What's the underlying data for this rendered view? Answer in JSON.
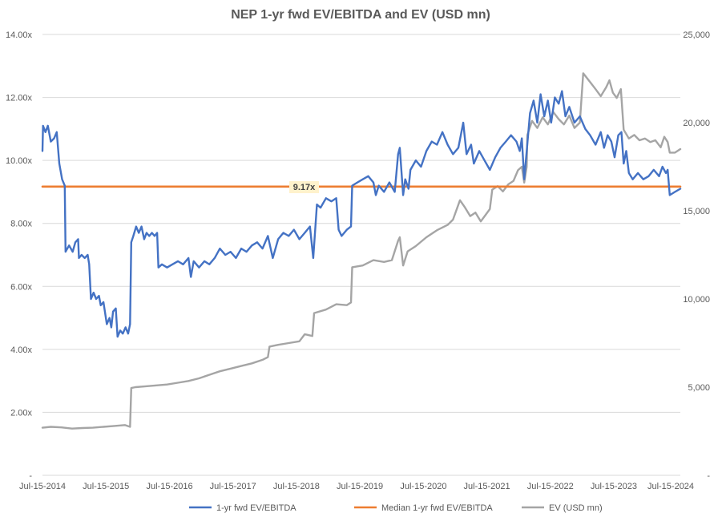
{
  "chart_data": {
    "type": "line",
    "title": "NEP 1-yr fwd EV/EBITDA and EV (USD mn)",
    "x_ticks": [
      "Jul-15-2014",
      "Jul-15-2015",
      "Jul-15-2016",
      "Jul-15-2017",
      "Jul-15-2018",
      "Jul-15-2019",
      "Jul-15-2020",
      "Jul-15-2021",
      "Jul-15-2022",
      "Jul-15-2023",
      "Jul-15-2024"
    ],
    "x_range": [
      "2014-07-15",
      "2024-08-01"
    ],
    "y_left": {
      "ticks": [
        "-",
        "2.00x",
        "4.00x",
        "6.00x",
        "8.00x",
        "10.00x",
        "12.00x",
        "14.00x"
      ],
      "ylim": [
        0,
        14
      ]
    },
    "y_right": {
      "ticks": [
        "-",
        "5,000",
        "10,000",
        "15,000",
        "20,000",
        "25,000"
      ],
      "ylim": [
        0,
        25000
      ]
    },
    "grid": true,
    "legend_position": "bottom",
    "median_label": "9.17x",
    "series": [
      {
        "name": "1-yr fwd EV/EBITDA",
        "axis": "left",
        "color": "#4472C4",
        "points": [
          [
            "2014-07-15",
            10.3
          ],
          [
            "2014-07-18",
            11.1
          ],
          [
            "2014-08-01",
            10.9
          ],
          [
            "2014-08-15",
            11.1
          ],
          [
            "2014-09-01",
            10.6
          ],
          [
            "2014-09-20",
            10.7
          ],
          [
            "2014-10-05",
            10.9
          ],
          [
            "2014-10-20",
            9.9
          ],
          [
            "2014-11-05",
            9.4
          ],
          [
            "2014-11-20",
            9.2
          ],
          [
            "2014-11-25",
            7.1
          ],
          [
            "2014-12-15",
            7.3
          ],
          [
            "2015-01-05",
            7.1
          ],
          [
            "2015-01-20",
            7.4
          ],
          [
            "2015-02-05",
            7.5
          ],
          [
            "2015-02-10",
            6.9
          ],
          [
            "2015-02-25",
            7.0
          ],
          [
            "2015-03-15",
            6.9
          ],
          [
            "2015-04-01",
            7.0
          ],
          [
            "2015-04-10",
            6.7
          ],
          [
            "2015-04-20",
            5.6
          ],
          [
            "2015-05-05",
            5.8
          ],
          [
            "2015-05-20",
            5.6
          ],
          [
            "2015-06-05",
            5.7
          ],
          [
            "2015-06-15",
            5.4
          ],
          [
            "2015-07-01",
            5.5
          ],
          [
            "2015-07-20",
            4.8
          ],
          [
            "2015-08-05",
            5.0
          ],
          [
            "2015-08-15",
            4.7
          ],
          [
            "2015-08-25",
            5.2
          ],
          [
            "2015-09-10",
            5.3
          ],
          [
            "2015-09-20",
            4.4
          ],
          [
            "2015-10-05",
            4.6
          ],
          [
            "2015-10-20",
            4.5
          ],
          [
            "2015-11-05",
            4.7
          ],
          [
            "2015-11-20",
            4.5
          ],
          [
            "2015-12-01",
            4.8
          ],
          [
            "2015-12-08",
            7.4
          ],
          [
            "2015-12-20",
            7.6
          ],
          [
            "2016-01-05",
            7.9
          ],
          [
            "2016-01-20",
            7.7
          ],
          [
            "2016-02-05",
            7.9
          ],
          [
            "2016-02-20",
            7.5
          ],
          [
            "2016-03-05",
            7.7
          ],
          [
            "2016-03-20",
            7.6
          ],
          [
            "2016-04-05",
            7.7
          ],
          [
            "2016-04-20",
            7.6
          ],
          [
            "2016-05-05",
            7.7
          ],
          [
            "2016-05-12",
            6.6
          ],
          [
            "2016-06-01",
            6.7
          ],
          [
            "2016-07-01",
            6.6
          ],
          [
            "2016-08-01",
            6.7
          ],
          [
            "2016-09-01",
            6.8
          ],
          [
            "2016-10-01",
            6.7
          ],
          [
            "2016-11-01",
            6.9
          ],
          [
            "2016-11-15",
            6.3
          ],
          [
            "2016-12-01",
            6.8
          ],
          [
            "2017-01-01",
            6.6
          ],
          [
            "2017-02-01",
            6.8
          ],
          [
            "2017-03-01",
            6.7
          ],
          [
            "2017-04-01",
            6.9
          ],
          [
            "2017-05-01",
            7.2
          ],
          [
            "2017-06-01",
            7.0
          ],
          [
            "2017-07-01",
            7.1
          ],
          [
            "2017-08-01",
            6.9
          ],
          [
            "2017-09-01",
            7.2
          ],
          [
            "2017-10-01",
            7.1
          ],
          [
            "2017-11-01",
            7.3
          ],
          [
            "2017-12-01",
            7.4
          ],
          [
            "2018-01-01",
            7.2
          ],
          [
            "2018-02-01",
            7.6
          ],
          [
            "2018-03-01",
            6.9
          ],
          [
            "2018-04-01",
            7.5
          ],
          [
            "2018-05-01",
            7.7
          ],
          [
            "2018-06-01",
            7.6
          ],
          [
            "2018-07-01",
            7.8
          ],
          [
            "2018-08-01",
            7.5
          ],
          [
            "2018-09-01",
            7.7
          ],
          [
            "2018-10-01",
            7.9
          ],
          [
            "2018-10-20",
            6.9
          ],
          [
            "2018-11-10",
            8.6
          ],
          [
            "2018-12-01",
            8.5
          ],
          [
            "2019-01-01",
            8.8
          ],
          [
            "2019-02-01",
            8.7
          ],
          [
            "2019-03-01",
            8.8
          ],
          [
            "2019-03-15",
            7.8
          ],
          [
            "2019-04-01",
            7.6
          ],
          [
            "2019-05-01",
            7.8
          ],
          [
            "2019-05-25",
            7.9
          ],
          [
            "2019-06-01",
            9.2
          ],
          [
            "2019-07-01",
            9.3
          ],
          [
            "2019-08-01",
            9.4
          ],
          [
            "2019-09-01",
            9.5
          ],
          [
            "2019-10-01",
            9.3
          ],
          [
            "2019-10-15",
            8.9
          ],
          [
            "2019-11-01",
            9.2
          ],
          [
            "2019-12-01",
            9.0
          ],
          [
            "2020-01-01",
            9.3
          ],
          [
            "2020-02-01",
            9.0
          ],
          [
            "2020-02-20",
            10.2
          ],
          [
            "2020-03-01",
            10.4
          ],
          [
            "2020-03-20",
            8.9
          ],
          [
            "2020-04-01",
            9.4
          ],
          [
            "2020-04-20",
            9.1
          ],
          [
            "2020-05-01",
            9.7
          ],
          [
            "2020-06-01",
            10.0
          ],
          [
            "2020-07-01",
            9.8
          ],
          [
            "2020-08-01",
            10.3
          ],
          [
            "2020-09-01",
            10.6
          ],
          [
            "2020-10-01",
            10.5
          ],
          [
            "2020-11-01",
            10.9
          ],
          [
            "2020-12-01",
            10.5
          ],
          [
            "2021-01-01",
            10.2
          ],
          [
            "2021-02-01",
            10.4
          ],
          [
            "2021-03-01",
            11.2
          ],
          [
            "2021-03-20",
            10.2
          ],
          [
            "2021-04-15",
            10.5
          ],
          [
            "2021-05-01",
            9.9
          ],
          [
            "2021-06-01",
            10.3
          ],
          [
            "2021-07-01",
            10.0
          ],
          [
            "2021-08-01",
            9.7
          ],
          [
            "2021-09-01",
            10.1
          ],
          [
            "2021-10-01",
            10.4
          ],
          [
            "2021-11-01",
            10.6
          ],
          [
            "2021-12-01",
            10.8
          ],
          [
            "2022-01-01",
            10.6
          ],
          [
            "2022-01-20",
            10.3
          ],
          [
            "2022-02-01",
            10.7
          ],
          [
            "2022-02-15",
            9.4
          ],
          [
            "2022-03-01",
            10.3
          ],
          [
            "2022-03-20",
            11.5
          ],
          [
            "2022-04-10",
            11.9
          ],
          [
            "2022-05-01",
            11.2
          ],
          [
            "2022-05-20",
            12.1
          ],
          [
            "2022-06-10",
            11.4
          ],
          [
            "2022-07-01",
            11.9
          ],
          [
            "2022-07-20",
            11.2
          ],
          [
            "2022-08-10",
            12.0
          ],
          [
            "2022-09-01",
            11.8
          ],
          [
            "2022-09-20",
            12.2
          ],
          [
            "2022-10-10",
            11.4
          ],
          [
            "2022-11-01",
            11.7
          ],
          [
            "2022-12-01",
            11.2
          ],
          [
            "2023-01-01",
            11.4
          ],
          [
            "2023-02-01",
            11.0
          ],
          [
            "2023-03-01",
            10.8
          ],
          [
            "2023-04-01",
            10.5
          ],
          [
            "2023-05-01",
            10.9
          ],
          [
            "2023-05-20",
            10.4
          ],
          [
            "2023-06-10",
            10.8
          ],
          [
            "2023-07-01",
            10.6
          ],
          [
            "2023-07-20",
            10.1
          ],
          [
            "2023-08-10",
            10.8
          ],
          [
            "2023-08-28",
            10.9
          ],
          [
            "2023-09-10",
            9.9
          ],
          [
            "2023-09-25",
            10.3
          ],
          [
            "2023-10-10",
            9.6
          ],
          [
            "2023-11-01",
            9.4
          ],
          [
            "2023-12-01",
            9.6
          ],
          [
            "2024-01-01",
            9.4
          ],
          [
            "2024-02-01",
            9.5
          ],
          [
            "2024-03-01",
            9.7
          ],
          [
            "2024-04-01",
            9.5
          ],
          [
            "2024-04-20",
            9.8
          ],
          [
            "2024-05-10",
            9.6
          ],
          [
            "2024-05-20",
            9.7
          ],
          [
            "2024-06-01",
            8.9
          ],
          [
            "2024-07-01",
            9.0
          ],
          [
            "2024-08-01",
            9.1
          ]
        ]
      },
      {
        "name": "Median 1-yr fwd EV/EBITDA",
        "axis": "left",
        "color": "#ED7D31",
        "points": [
          [
            "2014-07-15",
            9.17
          ],
          [
            "2024-08-01",
            9.17
          ]
        ]
      },
      {
        "name": "EV (USD mn)",
        "axis": "right",
        "color": "#A5A5A5",
        "points": [
          [
            "2014-07-15",
            2700
          ],
          [
            "2014-09-01",
            2750
          ],
          [
            "2014-11-01",
            2720
          ],
          [
            "2015-01-01",
            2650
          ],
          [
            "2015-03-01",
            2680
          ],
          [
            "2015-05-01",
            2700
          ],
          [
            "2015-07-01",
            2750
          ],
          [
            "2015-09-01",
            2800
          ],
          [
            "2015-11-01",
            2850
          ],
          [
            "2015-12-01",
            2750
          ],
          [
            "2015-12-08",
            4950
          ],
          [
            "2016-01-01",
            5000
          ],
          [
            "2016-03-01",
            5050
          ],
          [
            "2016-05-01",
            5100
          ],
          [
            "2016-07-01",
            5150
          ],
          [
            "2016-09-01",
            5250
          ],
          [
            "2016-11-01",
            5350
          ],
          [
            "2017-01-01",
            5500
          ],
          [
            "2017-03-01",
            5700
          ],
          [
            "2017-05-01",
            5900
          ],
          [
            "2017-07-01",
            6050
          ],
          [
            "2017-09-01",
            6200
          ],
          [
            "2017-11-01",
            6350
          ],
          [
            "2018-01-01",
            6550
          ],
          [
            "2018-02-01",
            6700
          ],
          [
            "2018-02-10",
            7300
          ],
          [
            "2018-04-01",
            7400
          ],
          [
            "2018-06-01",
            7500
          ],
          [
            "2018-08-01",
            7600
          ],
          [
            "2018-09-01",
            8000
          ],
          [
            "2018-10-15",
            7900
          ],
          [
            "2018-10-25",
            9200
          ],
          [
            "2019-01-01",
            9400
          ],
          [
            "2019-03-01",
            9700
          ],
          [
            "2019-05-01",
            9650
          ],
          [
            "2019-05-25",
            9800
          ],
          [
            "2019-06-01",
            11800
          ],
          [
            "2019-08-01",
            11900
          ],
          [
            "2019-10-01",
            12200
          ],
          [
            "2019-12-01",
            12100
          ],
          [
            "2020-01-15",
            12200
          ],
          [
            "2020-02-20",
            13300
          ],
          [
            "2020-03-01",
            13500
          ],
          [
            "2020-03-20",
            11900
          ],
          [
            "2020-04-15",
            12700
          ],
          [
            "2020-06-01",
            13000
          ],
          [
            "2020-08-01",
            13500
          ],
          [
            "2020-10-01",
            13900
          ],
          [
            "2020-12-01",
            14200
          ],
          [
            "2021-01-01",
            14500
          ],
          [
            "2021-02-10",
            15600
          ],
          [
            "2021-03-10",
            15200
          ],
          [
            "2021-04-10",
            14700
          ],
          [
            "2021-05-10",
            14900
          ],
          [
            "2021-06-10",
            14400
          ],
          [
            "2021-07-10",
            14800
          ],
          [
            "2021-08-01",
            15100
          ],
          [
            "2021-08-15",
            16200
          ],
          [
            "2021-09-15",
            16400
          ],
          [
            "2021-10-15",
            16100
          ],
          [
            "2021-11-15",
            16500
          ],
          [
            "2021-12-15",
            16700
          ],
          [
            "2022-01-10",
            17300
          ],
          [
            "2022-02-01",
            17500
          ],
          [
            "2022-02-15",
            16600
          ],
          [
            "2022-03-01",
            17500
          ],
          [
            "2022-03-05",
            19300
          ],
          [
            "2022-04-01",
            20100
          ],
          [
            "2022-05-01",
            19700
          ],
          [
            "2022-06-01",
            20300
          ],
          [
            "2022-07-01",
            19900
          ],
          [
            "2022-08-01",
            20600
          ],
          [
            "2022-09-01",
            20200
          ],
          [
            "2022-10-01",
            19900
          ],
          [
            "2022-11-01",
            20400
          ],
          [
            "2022-12-01",
            19700
          ],
          [
            "2023-01-01",
            20000
          ],
          [
            "2023-01-20",
            22800
          ],
          [
            "2023-03-01",
            22300
          ],
          [
            "2023-04-01",
            21900
          ],
          [
            "2023-05-01",
            21500
          ],
          [
            "2023-06-01",
            22000
          ],
          [
            "2023-06-20",
            22400
          ],
          [
            "2023-07-10",
            21700
          ],
          [
            "2023-08-01",
            21400
          ],
          [
            "2023-08-25",
            21900
          ],
          [
            "2023-09-10",
            19600
          ],
          [
            "2023-10-10",
            19100
          ],
          [
            "2023-11-10",
            19300
          ],
          [
            "2023-12-10",
            19000
          ],
          [
            "2024-01-10",
            19100
          ],
          [
            "2024-02-10",
            18900
          ],
          [
            "2024-03-10",
            19000
          ],
          [
            "2024-04-10",
            18600
          ],
          [
            "2024-05-01",
            19200
          ],
          [
            "2024-05-20",
            18900
          ],
          [
            "2024-06-01",
            18300
          ],
          [
            "2024-07-01",
            18300
          ],
          [
            "2024-08-01",
            18500
          ]
        ]
      }
    ]
  }
}
